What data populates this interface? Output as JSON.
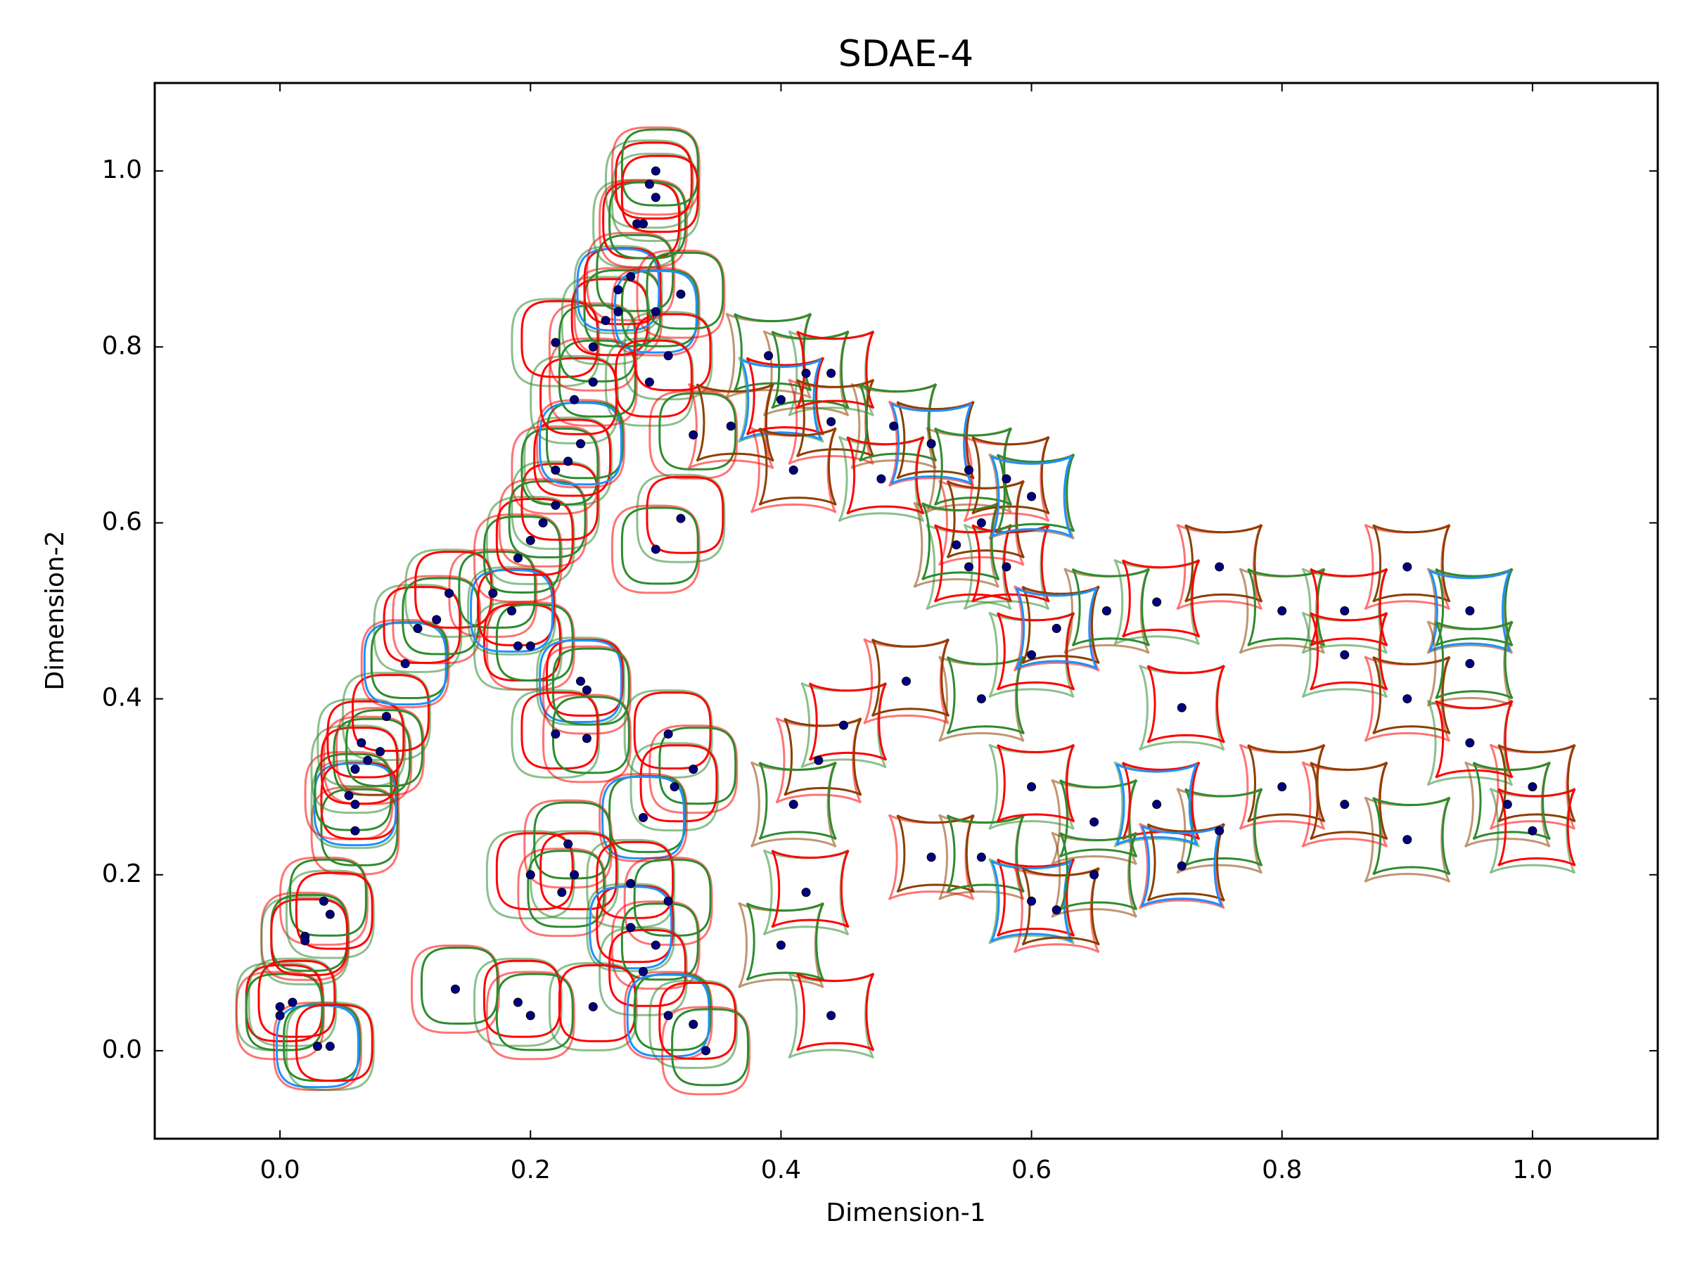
{
  "chart_data": {
    "type": "scatter",
    "title": "SDAE-4",
    "x_label": "Dimension-1",
    "y_label": "Dimension-2",
    "xlim": [
      -0.1,
      1.1
    ],
    "ylim": [
      -0.1,
      1.1
    ],
    "xticks": [
      {
        "value": 0,
        "label": "0.0"
      },
      0.2,
      0.4,
      0.6,
      0.8,
      {
        "value": 1,
        "label": "1.0"
      }
    ],
    "yticks": [
      {
        "value": 0,
        "label": "0.0"
      },
      0.2,
      0.4,
      0.6,
      0.8,
      {
        "value": 1,
        "label": "1.0"
      }
    ],
    "color": "#000080",
    "glyph_colors": [
      "#2e8b2e",
      "#ff0000",
      "#8b4000",
      "#1e90ff"
    ],
    "x": [
      0.0,
      0.0,
      0.01,
      0.03,
      0.04,
      0.02,
      0.02,
      0.035,
      0.04,
      0.06,
      0.06,
      0.055,
      0.06,
      0.07,
      0.065,
      0.08,
      0.085,
      0.1,
      0.11,
      0.125,
      0.135,
      0.17,
      0.19,
      0.2,
      0.185,
      0.19,
      0.2,
      0.21,
      0.22,
      0.22,
      0.23,
      0.24,
      0.235,
      0.25,
      0.22,
      0.25,
      0.26,
      0.27,
      0.27,
      0.28,
      0.285,
      0.29,
      0.295,
      0.3,
      0.3,
      0.3,
      0.31,
      0.32,
      0.295,
      0.33,
      0.32,
      0.3,
      0.24,
      0.245,
      0.22,
      0.245,
      0.31,
      0.33,
      0.315,
      0.29,
      0.2,
      0.23,
      0.235,
      0.225,
      0.28,
      0.31,
      0.28,
      0.3,
      0.29,
      0.14,
      0.19,
      0.2,
      0.25,
      0.31,
      0.33,
      0.34,
      0.4,
      0.44,
      0.36,
      0.39,
      0.4,
      0.41,
      0.42,
      0.44,
      0.44,
      0.49,
      0.48,
      0.52,
      0.55,
      0.55,
      0.56,
      0.54,
      0.58,
      0.58,
      0.6,
      0.45,
      0.43,
      0.41,
      0.42,
      0.52,
      0.56,
      0.6,
      0.62,
      0.65,
      0.6,
      0.5,
      0.56,
      0.6,
      0.62,
      0.66,
      0.7,
      0.75,
      0.8,
      0.85,
      0.9,
      0.95,
      0.85,
      0.9,
      0.95,
      0.72,
      0.8,
      0.75,
      0.7,
      0.85,
      0.9,
      0.95,
      1.0,
      0.98,
      1.0,
      0.72,
      0.65
    ],
    "values": [
      0.05,
      0.04,
      0.055,
      0.005,
      0.005,
      0.13,
      0.125,
      0.17,
      0.155,
      0.25,
      0.28,
      0.29,
      0.32,
      0.33,
      0.35,
      0.34,
      0.38,
      0.44,
      0.48,
      0.49,
      0.52,
      0.52,
      0.46,
      0.46,
      0.5,
      0.56,
      0.58,
      0.6,
      0.62,
      0.66,
      0.67,
      0.69,
      0.74,
      0.76,
      0.805,
      0.8,
      0.83,
      0.84,
      0.865,
      0.88,
      0.94,
      0.94,
      0.985,
      1.0,
      0.97,
      0.84,
      0.79,
      0.86,
      0.76,
      0.7,
      0.605,
      0.57,
      0.42,
      0.41,
      0.36,
      0.355,
      0.36,
      0.32,
      0.3,
      0.265,
      0.2,
      0.235,
      0.2,
      0.18,
      0.19,
      0.17,
      0.14,
      0.12,
      0.09,
      0.07,
      0.055,
      0.04,
      0.05,
      0.04,
      0.03,
      0.0,
      0.12,
      0.04,
      0.71,
      0.79,
      0.74,
      0.66,
      0.77,
      0.77,
      0.715,
      0.71,
      0.65,
      0.69,
      0.66,
      0.55,
      0.6,
      0.575,
      0.55,
      0.65,
      0.63,
      0.37,
      0.33,
      0.28,
      0.18,
      0.22,
      0.22,
      0.17,
      0.16,
      0.26,
      0.3,
      0.42,
      0.4,
      0.45,
      0.48,
      0.5,
      0.51,
      0.55,
      0.5,
      0.5,
      0.55,
      0.5,
      0.45,
      0.4,
      0.44,
      0.39,
      0.3,
      0.25,
      0.28,
      0.28,
      0.24,
      0.35,
      0.3,
      0.28,
      0.25,
      0.21,
      0.2
    ]
  }
}
